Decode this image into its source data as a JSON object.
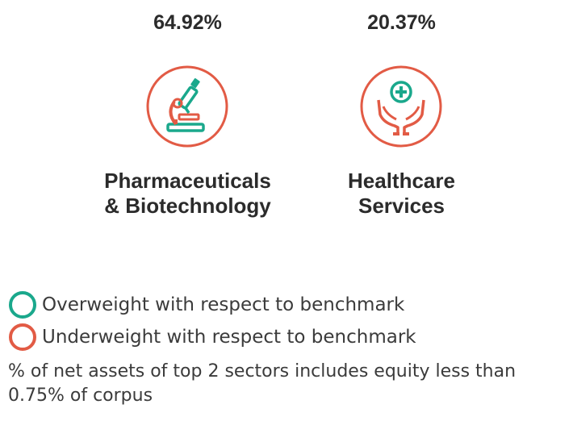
{
  "colors": {
    "overweight": "#1aa88c",
    "underweight": "#e25b45",
    "text": "#2b2b2b"
  },
  "chart_data": {
    "type": "table",
    "sectors": [
      {
        "value": "64.92%",
        "name_line1": "Pharmaceuticals",
        "name_line2": "& Biotechnology",
        "icon": "microscope-icon",
        "weight": "underweight"
      },
      {
        "value": "20.37%",
        "name_line1": "Healthcare",
        "name_line2": "Services",
        "icon": "medical-care-hands-icon",
        "weight": "underweight"
      }
    ]
  },
  "legend": {
    "overweight": "Overweight with respect to benchmark",
    "underweight": "Underweight with respect to benchmark"
  },
  "note": "% of net assets of top 2 sectors includes equity less than 0.75% of corpus"
}
